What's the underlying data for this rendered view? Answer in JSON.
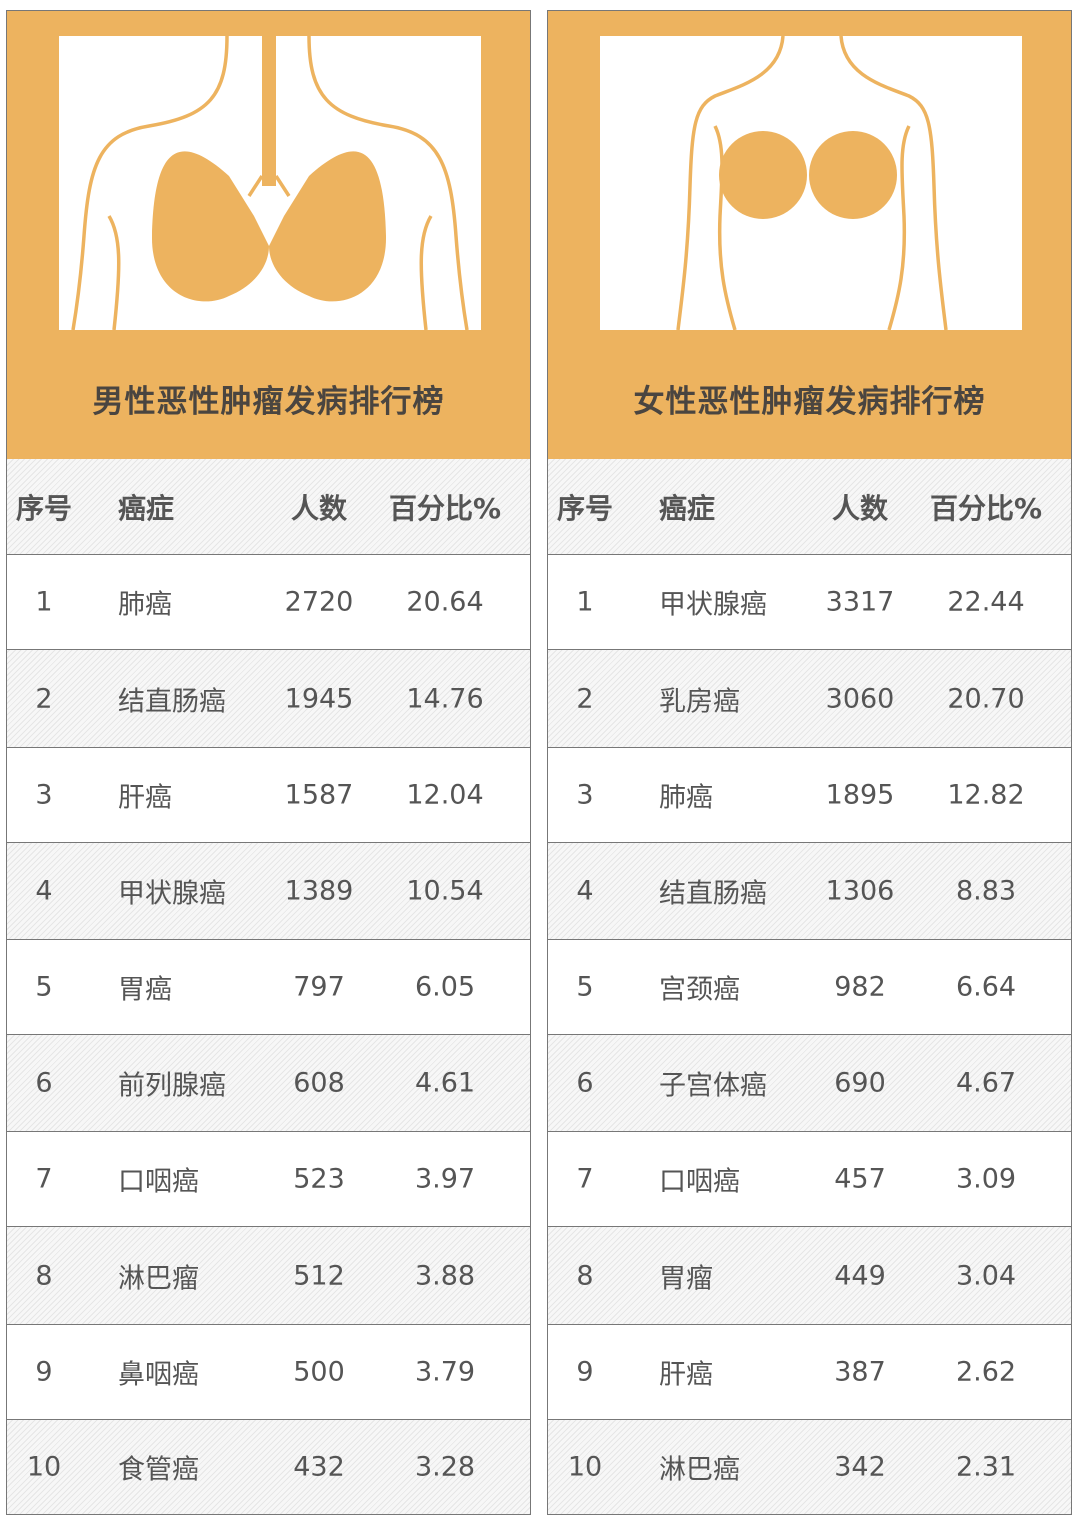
{
  "colors": {
    "accent": "#EDB35F",
    "text": "#555555",
    "border": "#777777"
  },
  "tables": [
    {
      "title": "男性恶性肿瘤发病排行榜",
      "illustration": "male-torso-lungs-icon",
      "headers": [
        "序号",
        "癌症",
        "人数",
        "百分比%"
      ],
      "rows": [
        [
          "1",
          "肺癌",
          "2720",
          "20.64"
        ],
        [
          "2",
          "结直肠癌",
          "1945",
          "14.76"
        ],
        [
          "3",
          "肝癌",
          "1587",
          "12.04"
        ],
        [
          "4",
          "甲状腺癌",
          "1389",
          "10.54"
        ],
        [
          "5",
          "胃癌",
          "797",
          "6.05"
        ],
        [
          "6",
          "前列腺癌",
          "608",
          "4.61"
        ],
        [
          "7",
          "口咽癌",
          "523",
          "3.97"
        ],
        [
          "8",
          "淋巴瘤",
          "512",
          "3.88"
        ],
        [
          "9",
          "鼻咽癌",
          "500",
          "3.79"
        ],
        [
          "10",
          "食管癌",
          "432",
          "3.28"
        ]
      ]
    },
    {
      "title": "女性恶性肿瘤发病排行榜",
      "illustration": "female-torso-breast-icon",
      "headers": [
        "序号",
        "癌症",
        "人数",
        "百分比%"
      ],
      "rows": [
        [
          "1",
          "甲状腺癌",
          "3317",
          "22.44"
        ],
        [
          "2",
          "乳房癌",
          "3060",
          "20.70"
        ],
        [
          "3",
          "肺癌",
          "1895",
          "12.82"
        ],
        [
          "4",
          "结直肠癌",
          "1306",
          "8.83"
        ],
        [
          "5",
          "宫颈癌",
          "982",
          "6.64"
        ],
        [
          "6",
          "子宫体癌",
          "690",
          "4.67"
        ],
        [
          "7",
          "口咽癌",
          "457",
          "3.09"
        ],
        [
          "8",
          "胃瘤",
          "449",
          "3.04"
        ],
        [
          "9",
          "肝癌",
          "387",
          "2.62"
        ],
        [
          "10",
          "淋巴癌",
          "342",
          "2.31"
        ]
      ]
    }
  ]
}
